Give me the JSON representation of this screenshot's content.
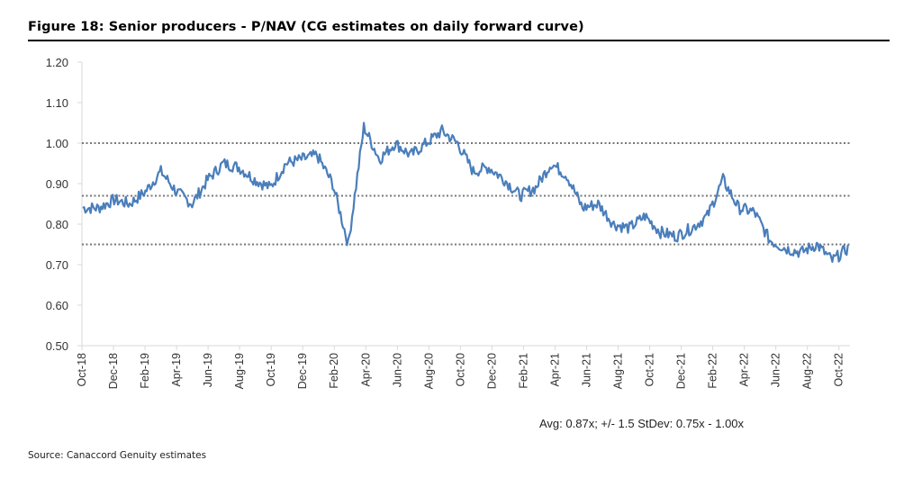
{
  "figure": {
    "title": "Figure 18: Senior producers - P/NAV (CG estimates on daily forward curve)",
    "source": "Source: Canaccord Genuity estimates",
    "annotation": "Avg: 0.87x; +/- 1.5 StDev: 0.75x - 1.00x"
  },
  "colors": {
    "series": "#4a7ebb",
    "reference_lines": "#777777",
    "axis": "#d9d9d9",
    "text": "#333333"
  },
  "chart_data": {
    "type": "line",
    "title": "Figure 18: Senior producers - P/NAV (CG estimates on daily forward curve)",
    "xlabel": "",
    "ylabel": "",
    "ylim": [
      0.5,
      1.2
    ],
    "yticks": [
      "0.50",
      "0.60",
      "0.70",
      "0.80",
      "0.90",
      "1.00",
      "1.10",
      "1.20"
    ],
    "xticks": [
      "Oct-18",
      "Dec-18",
      "Feb-19",
      "Apr-19",
      "Jun-19",
      "Aug-19",
      "Oct-19",
      "Dec-19",
      "Feb-20",
      "Apr-20",
      "Jun-20",
      "Aug-20",
      "Oct-20",
      "Dec-20",
      "Feb-21",
      "Apr-21",
      "Jun-21",
      "Aug-21",
      "Oct-21",
      "Dec-21",
      "Feb-22",
      "Apr-22",
      "Jun-22",
      "Aug-22",
      "Oct-22"
    ],
    "grid": false,
    "legend": "none",
    "reference_lines": [
      {
        "label": "Avg",
        "value": 0.87
      },
      {
        "label": "+1.5 StDev",
        "value": 1.0
      },
      {
        "label": "-1.5 StDev",
        "value": 0.75
      }
    ],
    "series": [
      {
        "x": [
          "Oct-18",
          "Nov-18",
          "Dec-18",
          "Jan-19",
          "Feb-19",
          "Mar-19",
          "Apr-19",
          "May-19",
          "Jun-19",
          "Jul-19",
          "Aug-19",
          "Sep-19",
          "Oct-19",
          "Nov-19",
          "Dec-19",
          "Jan-20",
          "Feb-20",
          "Mar-20",
          "Apr-20",
          "May-20",
          "Jun-20",
          "Jul-20",
          "Aug-20",
          "Sep-20",
          "Oct-20",
          "Nov-20",
          "Dec-20",
          "Jan-21",
          "Feb-21",
          "Mar-21",
          "Apr-21",
          "May-21",
          "Jun-21",
          "Jul-21",
          "Aug-21",
          "Sep-21",
          "Oct-21",
          "Nov-21",
          "Dec-21",
          "Jan-22",
          "Feb-22",
          "Mar-22",
          "Apr-22",
          "May-22",
          "Jun-22",
          "Jul-22",
          "Aug-22",
          "Sep-22",
          "Oct-22",
          "Nov-22"
        ],
        "values": [
          0.84,
          0.84,
          0.86,
          0.85,
          0.88,
          0.93,
          0.88,
          0.85,
          0.91,
          0.95,
          0.94,
          0.91,
          0.89,
          0.95,
          0.96,
          0.97,
          0.9,
          0.75,
          1.04,
          0.96,
          1.0,
          0.97,
          1.0,
          1.03,
          1.0,
          0.93,
          0.94,
          0.91,
          0.87,
          0.89,
          0.95,
          0.92,
          0.84,
          0.85,
          0.8,
          0.79,
          0.82,
          0.78,
          0.77,
          0.79,
          0.82,
          0.91,
          0.84,
          0.83,
          0.76,
          0.74,
          0.73,
          0.75,
          0.71,
          0.74
        ]
      }
    ]
  }
}
